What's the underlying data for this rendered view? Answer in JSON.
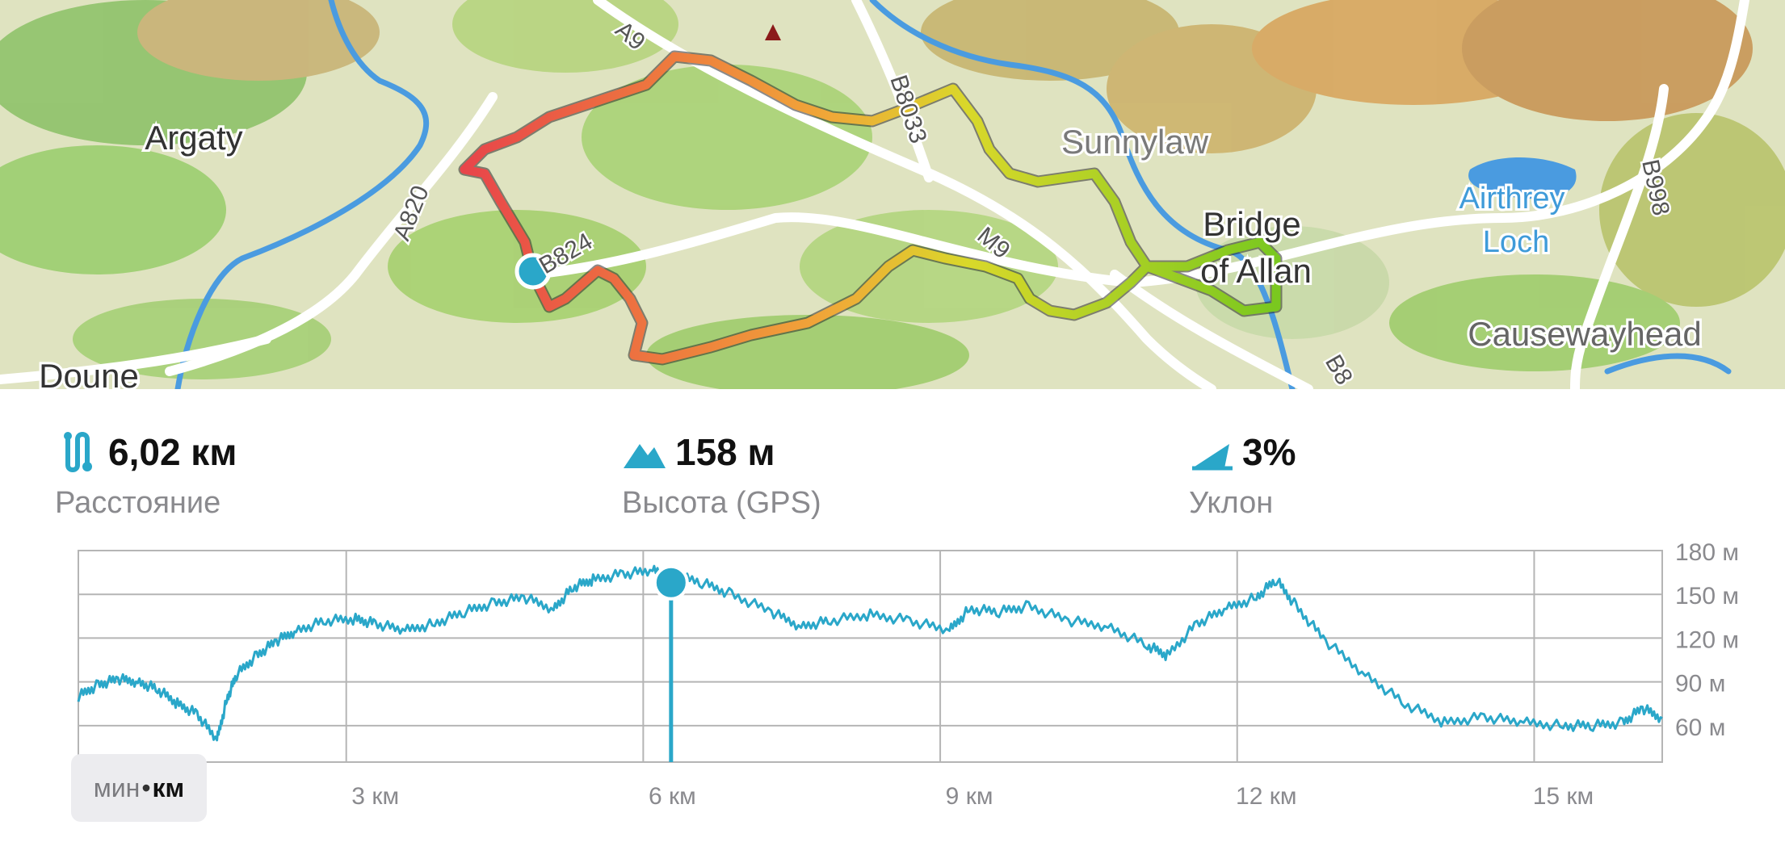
{
  "map": {
    "labels": {
      "argaty": "Argaty",
      "doune": "Doune",
      "sunnylaw": "Sunnylaw",
      "bridge": "Bridge",
      "of_allan": "of Allan",
      "airthrey": "Airthrey",
      "loch": "Loch",
      "causewayhead": "Causewayhead",
      "a9": "A9",
      "a820": "A820",
      "b8033": "B8033",
      "b824": "B824",
      "m9": "M9",
      "b998": "B998",
      "b8_partial": "B8"
    },
    "colors": {
      "water": "#4a9be0",
      "track_start": "#e8454a",
      "track_end": "#7ac81f",
      "marker": "#2aa7c9"
    }
  },
  "stats": {
    "distance": {
      "value": "6,02 км",
      "label": "Расстояние",
      "icon": "route-icon"
    },
    "altitude": {
      "value": "158 м",
      "label": "Высота (GPS)",
      "icon": "mountain-icon"
    },
    "grade": {
      "value": "3%",
      "label": "Уклон",
      "icon": "slope-icon"
    }
  },
  "unit_toggle": {
    "min": "мин",
    "sep": "•",
    "km": "км",
    "active": "km"
  },
  "chart_data": {
    "type": "line",
    "title": "",
    "xlabel": "",
    "ylabel": "",
    "x_tick_labels": [
      "3 км",
      "6 км",
      "9 км",
      "12 км",
      "15 км"
    ],
    "x_ticks": [
      3,
      6,
      9,
      12,
      15
    ],
    "y_tick_labels": [
      "180 м",
      "150 м",
      "120 м",
      "90 м",
      "60 м"
    ],
    "y_ticks": [
      180,
      150,
      120,
      90,
      60
    ],
    "xlim": [
      0,
      16.0
    ],
    "ylim": [
      35,
      180
    ],
    "grid": true,
    "line_color": "#2aa7c9",
    "cursor_x": 6.02,
    "cursor_y": 158,
    "series": [
      {
        "x": [
          0,
          0.2,
          0.4,
          0.6,
          0.8,
          1.0,
          1.2,
          1.4,
          1.5,
          1.6,
          1.8,
          2.0,
          2.2,
          2.5,
          2.8,
          3.0,
          3.3,
          3.6,
          3.9,
          4.2,
          4.5,
          4.8,
          5.0,
          5.2,
          5.5,
          5.8,
          6.0,
          6.3,
          6.6,
          7.0,
          7.3,
          7.6,
          8.0,
          8.4,
          8.8,
          9.0,
          9.3,
          9.6,
          10.0,
          10.4,
          10.8,
          11.0,
          11.3,
          11.6,
          11.9,
          12.1,
          12.3,
          12.6,
          13.0,
          13.4,
          13.8,
          14.2,
          14.6,
          15.0,
          15.3,
          15.6,
          15.8,
          16.0
        ],
        "y": [
          80,
          88,
          92,
          90,
          85,
          75,
          68,
          50,
          78,
          95,
          108,
          118,
          125,
          132,
          133,
          130,
          125,
          130,
          138,
          144,
          148,
          140,
          155,
          160,
          164,
          166,
          163,
          158,
          150,
          138,
          128,
          132,
          136,
          132,
          125,
          140,
          138,
          142,
          132,
          128,
          115,
          108,
          130,
          140,
          148,
          160,
          142,
          118,
          95,
          75,
          62,
          66,
          62,
          60,
          60,
          62,
          72,
          65
        ]
      }
    ]
  }
}
